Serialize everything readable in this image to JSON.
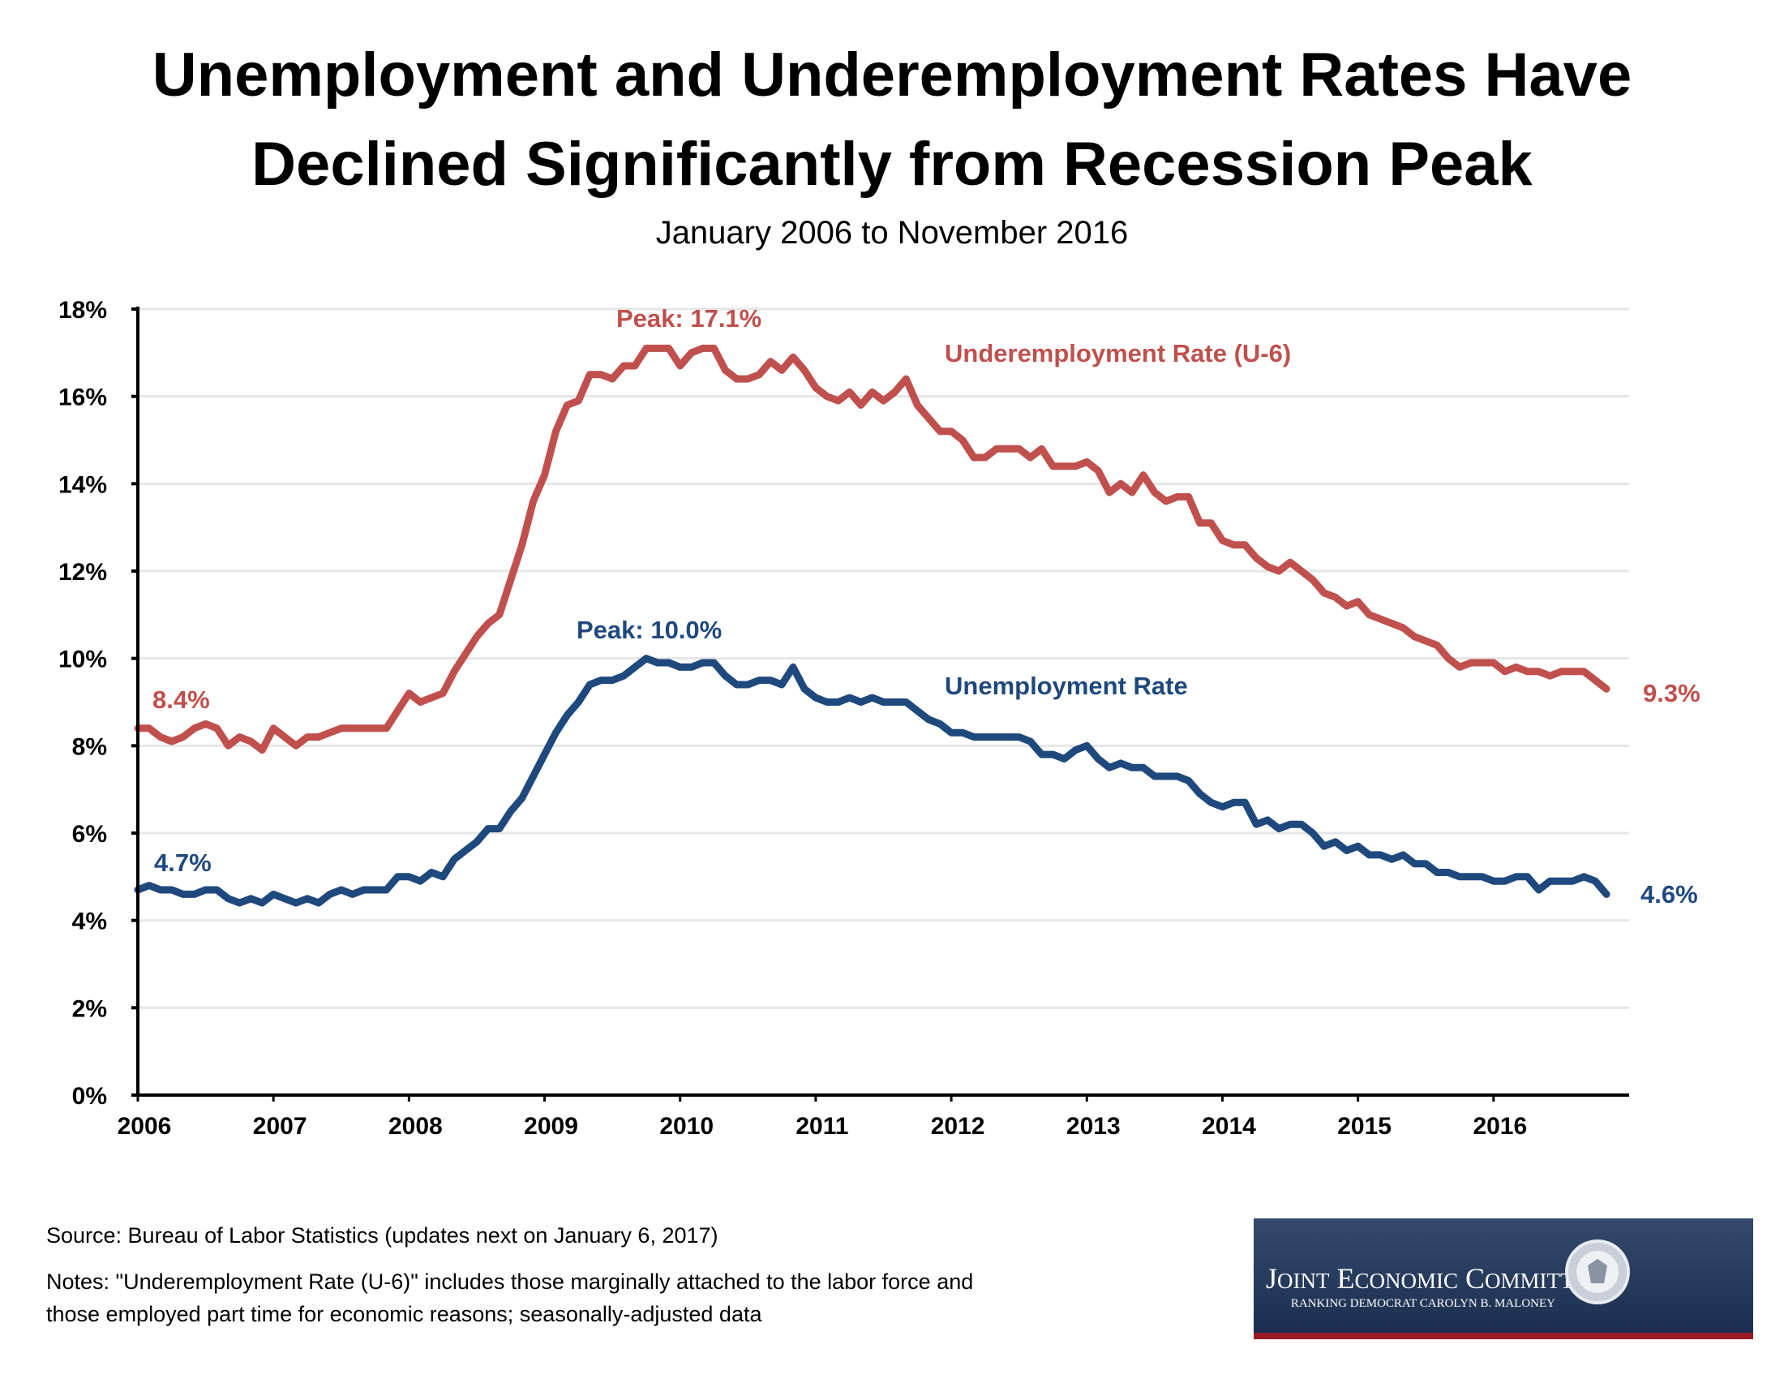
{
  "chart_data": {
    "type": "line",
    "title": "Unemployment and Underemployment Rates Have Declined Significantly from Recession Peak",
    "title_lines": [
      "Unemployment and Underemployment Rates Have",
      "Declined Significantly from Recession Peak"
    ],
    "subtitle": "January 2006 to November 2016",
    "x_start": "2006-01",
    "x_end": "2016-11",
    "x_frequency": "monthly",
    "x_tick_labels": [
      "2006",
      "2007",
      "2008",
      "2009",
      "2010",
      "2011",
      "2012",
      "2013",
      "2014",
      "2015",
      "2016"
    ],
    "ylim": [
      0,
      18
    ],
    "y_tick_labels": [
      "0%",
      "2%",
      "4%",
      "6%",
      "8%",
      "10%",
      "12%",
      "14%",
      "16%",
      "18%"
    ],
    "grid": true,
    "colors": {
      "underemployment": "#C0504D",
      "unemployment": "#1F497D"
    },
    "series": [
      {
        "name": "Underemployment Rate (U-6)",
        "values": [
          8.4,
          8.4,
          8.2,
          8.1,
          8.2,
          8.4,
          8.5,
          8.4,
          8.0,
          8.2,
          8.1,
          7.9,
          8.4,
          8.2,
          8.0,
          8.2,
          8.2,
          8.3,
          8.4,
          8.4,
          8.4,
          8.4,
          8.4,
          8.8,
          9.2,
          9.0,
          9.1,
          9.2,
          9.7,
          10.1,
          10.5,
          10.8,
          11.0,
          11.8,
          12.6,
          13.6,
          14.2,
          15.2,
          15.8,
          15.9,
          16.5,
          16.5,
          16.4,
          16.7,
          16.7,
          17.1,
          17.1,
          17.1,
          16.7,
          17.0,
          17.1,
          17.1,
          16.6,
          16.4,
          16.4,
          16.5,
          16.8,
          16.6,
          16.9,
          16.6,
          16.2,
          16.0,
          15.9,
          16.1,
          15.8,
          16.1,
          15.9,
          16.1,
          16.4,
          15.8,
          15.5,
          15.2,
          15.2,
          15.0,
          14.6,
          14.6,
          14.8,
          14.8,
          14.8,
          14.6,
          14.8,
          14.4,
          14.4,
          14.4,
          14.5,
          14.3,
          13.8,
          14.0,
          13.8,
          14.2,
          13.8,
          13.6,
          13.7,
          13.7,
          13.1,
          13.1,
          12.7,
          12.6,
          12.6,
          12.3,
          12.1,
          12.0,
          12.2,
          12.0,
          11.8,
          11.5,
          11.4,
          11.2,
          11.3,
          11.0,
          10.9,
          10.8,
          10.7,
          10.5,
          10.4,
          10.3,
          10.0,
          9.8,
          9.9,
          9.9,
          9.9,
          9.7,
          9.8,
          9.7,
          9.7,
          9.6,
          9.7,
          9.7,
          9.7,
          9.5,
          9.3
        ]
      },
      {
        "name": "Unemployment Rate",
        "values": [
          4.7,
          4.8,
          4.7,
          4.7,
          4.6,
          4.6,
          4.7,
          4.7,
          4.5,
          4.4,
          4.5,
          4.4,
          4.6,
          4.5,
          4.4,
          4.5,
          4.4,
          4.6,
          4.7,
          4.6,
          4.7,
          4.7,
          4.7,
          5.0,
          5.0,
          4.9,
          5.1,
          5.0,
          5.4,
          5.6,
          5.8,
          6.1,
          6.1,
          6.5,
          6.8,
          7.3,
          7.8,
          8.3,
          8.7,
          9.0,
          9.4,
          9.5,
          9.5,
          9.6,
          9.8,
          10.0,
          9.9,
          9.9,
          9.8,
          9.8,
          9.9,
          9.9,
          9.6,
          9.4,
          9.4,
          9.5,
          9.5,
          9.4,
          9.8,
          9.3,
          9.1,
          9.0,
          9.0,
          9.1,
          9.0,
          9.1,
          9.0,
          9.0,
          9.0,
          8.8,
          8.6,
          8.5,
          8.3,
          8.3,
          8.2,
          8.2,
          8.2,
          8.2,
          8.2,
          8.1,
          7.8,
          7.8,
          7.7,
          7.9,
          8.0,
          7.7,
          7.5,
          7.6,
          7.5,
          7.5,
          7.3,
          7.3,
          7.3,
          7.2,
          6.9,
          6.7,
          6.6,
          6.7,
          6.7,
          6.2,
          6.3,
          6.1,
          6.2,
          6.2,
          6.0,
          5.7,
          5.8,
          5.6,
          5.7,
          5.5,
          5.5,
          5.4,
          5.5,
          5.3,
          5.3,
          5.1,
          5.1,
          5.0,
          5.0,
          5.0,
          4.9,
          4.9,
          5.0,
          5.0,
          4.7,
          4.9,
          4.9,
          4.9,
          5.0,
          4.9,
          4.6
        ]
      }
    ],
    "annotations": {
      "u6_peak": "Peak: 17.1%",
      "u6_series_label": "Underemployment Rate (U-6)",
      "u6_start": "8.4%",
      "u6_end": "9.3%",
      "u3_peak": "Peak: 10.0%",
      "u3_series_label": "Unemployment Rate",
      "u3_start": "4.7%",
      "u3_end": "4.6%"
    }
  },
  "footer": {
    "source": "Source: Bureau of Labor Statistics (updates next on January 6, 2017)",
    "notes_line1": "Notes: \"Underemployment Rate (U-6)\" includes those marginally attached to the labor force and",
    "notes_line2": "those employed part time for economic reasons; seasonally-adjusted data"
  },
  "logo": {
    "name": "Joint Economic Committee",
    "subtitle": "Ranking Democrat Carolyn B. Maloney",
    "seal_text": "United States Congress",
    "colors": {
      "background": "#1E3356",
      "stripe": "#9B1B24"
    }
  }
}
